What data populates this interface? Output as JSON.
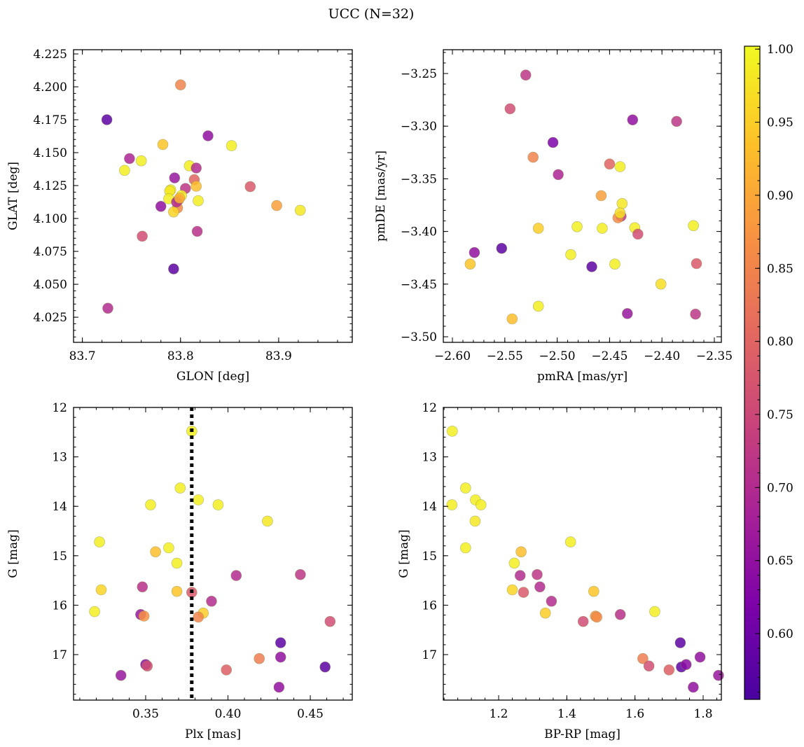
{
  "title": "UCC (N=32)",
  "colorbar": {
    "colormap": "plasma",
    "vmin": 0.555,
    "vmax": 1.002,
    "ticks": [
      0.6,
      0.65,
      0.7,
      0.75,
      0.8,
      0.85,
      0.9,
      0.95,
      1.0
    ],
    "tick_labels": [
      "0.60",
      "0.65",
      "0.70",
      "0.75",
      "0.80",
      "0.85",
      "0.90",
      "0.95",
      "1.00"
    ]
  },
  "chart_data": [
    {
      "type": "scatter",
      "id": "sky",
      "title": "",
      "xlabel": "GLON [deg]",
      "ylabel": "GLAT [deg]",
      "xlim": [
        83.691,
        83.975
      ],
      "ylim": [
        4.0059,
        4.2282
      ],
      "xticks": [
        83.7,
        83.8,
        83.9
      ],
      "xtick_labels": [
        "83.7",
        "83.8",
        "83.9"
      ],
      "yticks": [
        4.025,
        4.05,
        4.075,
        4.1,
        4.125,
        4.15,
        4.175,
        4.2,
        4.225
      ],
      "ytick_labels": [
        "4.025",
        "4.050",
        "4.075",
        "4.100",
        "4.125",
        "4.150",
        "4.175",
        "4.200",
        "4.225"
      ],
      "x": [
        83.8,
        83.725,
        83.828,
        83.782,
        83.852,
        83.748,
        83.76,
        83.743,
        83.809,
        83.816,
        83.794,
        83.814,
        83.805,
        83.816,
        83.871,
        83.79,
        83.789,
        83.801,
        83.788,
        83.818,
        83.78,
        83.798,
        83.797,
        83.793,
        83.898,
        83.922,
        83.817,
        83.761,
        83.793,
        83.726,
        83.796,
        83.799
      ],
      "y": [
        4.2015,
        4.175,
        4.1628,
        4.1562,
        4.1553,
        4.1455,
        4.1438,
        4.1365,
        4.14,
        4.1383,
        4.1308,
        4.1295,
        4.1228,
        4.1245,
        4.1242,
        4.1218,
        4.1208,
        4.1175,
        4.115,
        4.1135,
        4.1092,
        4.1142,
        4.108,
        4.105,
        4.1098,
        4.1062,
        4.0902,
        4.0865,
        4.0617,
        4.0318,
        4.1125,
        4.1155
      ],
      "c": [
        0.85,
        0.58,
        0.65,
        0.94,
        0.99,
        0.69,
        0.99,
        0.99,
        0.99,
        0.7,
        0.66,
        0.8,
        0.72,
        0.93,
        0.78,
        0.99,
        0.98,
        0.99,
        0.99,
        0.99,
        0.65,
        0.82,
        0.86,
        0.96,
        0.89,
        0.98,
        0.71,
        0.76,
        0.58,
        0.7,
        0.7,
        0.92
      ]
    },
    {
      "type": "scatter",
      "id": "pm",
      "title": "",
      "xlabel": "pmRA [mas/yr]",
      "ylabel": "pmDE [mas/yr]",
      "xlim": [
        -2.6087,
        -2.3433
      ],
      "ylim": [
        -3.5053,
        -3.2274
      ],
      "xticks": [
        -2.6,
        -2.55,
        -2.5,
        -2.45,
        -2.4,
        -2.35
      ],
      "xtick_labels": [
        "−2.60",
        "−2.55",
        "−2.50",
        "−2.45",
        "−2.40",
        "−2.35"
      ],
      "yticks": [
        -3.5,
        -3.45,
        -3.4,
        -3.35,
        -3.3,
        -3.25
      ],
      "ytick_labels": [
        "−3.50",
        "−3.45",
        "−3.40",
        "−3.35",
        "−3.30",
        "−3.25"
      ],
      "x": [
        -2.53,
        -2.545,
        -2.428,
        -2.386,
        -2.504,
        -2.523,
        -2.499,
        -2.45,
        -2.44,
        -2.458,
        -2.438,
        -2.439,
        -2.442,
        -2.44,
        -2.518,
        -2.481,
        -2.457,
        -2.426,
        -2.423,
        -2.37,
        -2.579,
        -2.553,
        -2.487,
        -2.467,
        -2.445,
        -2.583,
        -2.401,
        -2.518,
        -2.543,
        -2.433,
        -2.367,
        -2.368
      ],
      "y": [
        -3.2515,
        -3.2835,
        -3.294,
        -3.2955,
        -3.3155,
        -3.3295,
        -3.346,
        -3.336,
        -3.3385,
        -3.366,
        -3.3735,
        -3.3855,
        -3.387,
        -3.3825,
        -3.397,
        -3.3955,
        -3.397,
        -3.3965,
        -3.4025,
        -3.3945,
        -3.42,
        -3.416,
        -3.422,
        -3.4335,
        -3.431,
        -3.431,
        -3.45,
        -3.471,
        -3.483,
        -3.478,
        -3.4305,
        -3.4785
      ],
      "c": [
        0.72,
        0.76,
        0.65,
        0.72,
        0.62,
        0.85,
        0.69,
        0.8,
        0.99,
        0.89,
        0.98,
        0.72,
        0.86,
        0.97,
        0.95,
        0.99,
        0.99,
        0.99,
        0.76,
        0.99,
        0.65,
        0.58,
        0.99,
        0.58,
        0.99,
        0.94,
        0.97,
        0.99,
        0.93,
        0.66,
        0.78,
        0.72
      ]
    },
    {
      "type": "scatter",
      "id": "plx",
      "title": "",
      "xlabel": "Plx [mas]",
      "ylabel": "G [mag]",
      "xlim": [
        0.3062,
        0.4755
      ],
      "ylim": [
        17.92,
        12.0
      ],
      "xticks": [
        0.35,
        0.4,
        0.45
      ],
      "xtick_labels": [
        "0.35",
        "0.40",
        "0.45"
      ],
      "yticks": [
        12,
        13,
        14,
        15,
        16,
        17
      ],
      "ytick_labels": [
        "12",
        "13",
        "14",
        "15",
        "16",
        "17"
      ],
      "vline": {
        "x": 0.378,
        "style": "dotted",
        "color": "#000000"
      },
      "x": [
        0.378,
        0.371,
        0.382,
        0.353,
        0.394,
        0.424,
        0.322,
        0.364,
        0.356,
        0.369,
        0.405,
        0.444,
        0.348,
        0.323,
        0.369,
        0.378,
        0.39,
        0.319,
        0.347,
        0.349,
        0.385,
        0.382,
        0.462,
        0.432,
        0.432,
        0.419,
        0.35,
        0.351,
        0.399,
        0.335,
        0.459,
        0.431
      ],
      "y": [
        12.48,
        13.63,
        13.87,
        13.97,
        13.97,
        14.3,
        14.72,
        14.84,
        14.92,
        15.15,
        15.4,
        15.38,
        15.63,
        15.69,
        15.72,
        15.74,
        15.92,
        16.13,
        16.19,
        16.22,
        16.16,
        16.24,
        16.33,
        16.76,
        17.05,
        17.08,
        17.2,
        17.23,
        17.31,
        17.42,
        17.25,
        17.66
      ],
      "c": [
        0.99,
        0.99,
        0.99,
        0.99,
        0.99,
        0.98,
        0.99,
        0.99,
        0.93,
        0.99,
        0.7,
        0.72,
        0.71,
        0.96,
        0.94,
        0.78,
        0.7,
        0.99,
        0.66,
        0.87,
        0.95,
        0.85,
        0.76,
        0.58,
        0.65,
        0.84,
        0.64,
        0.76,
        0.79,
        0.66,
        0.58,
        0.65
      ]
    },
    {
      "type": "scatter",
      "id": "cmd",
      "title": "",
      "xlabel": "BP-RP [mag]",
      "ylabel": "G [mag]",
      "xlim": [
        1.0377,
        1.8534
      ],
      "ylim": [
        17.92,
        12.0
      ],
      "xticks": [
        1.2,
        1.4,
        1.6,
        1.8
      ],
      "xtick_labels": [
        "1.2",
        "1.4",
        "1.6",
        "1.8"
      ],
      "yticks": [
        12,
        13,
        14,
        15,
        16,
        17
      ],
      "ytick_labels": [
        "12",
        "13",
        "14",
        "15",
        "16",
        "17"
      ],
      "x": [
        1.064,
        1.103,
        1.132,
        1.063,
        1.148,
        1.131,
        1.103,
        1.411,
        1.266,
        1.246,
        1.263,
        1.313,
        1.321,
        1.24,
        1.273,
        1.479,
        1.355,
        1.658,
        1.337,
        1.448,
        1.557,
        1.484,
        1.488,
        1.733,
        1.791,
        1.623,
        1.641,
        1.736,
        1.75,
        1.7,
        1.845,
        1.771
      ],
      "y": [
        12.48,
        13.63,
        13.87,
        13.97,
        13.97,
        14.3,
        14.84,
        14.72,
        14.92,
        15.15,
        15.4,
        15.38,
        15.63,
        15.69,
        15.74,
        15.72,
        15.92,
        16.13,
        16.16,
        16.33,
        16.19,
        16.22,
        16.24,
        16.76,
        17.05,
        17.08,
        17.23,
        17.25,
        17.2,
        17.31,
        17.42,
        17.66
      ],
      "c": [
        0.99,
        0.99,
        0.99,
        0.99,
        0.99,
        0.98,
        0.99,
        0.99,
        0.93,
        0.99,
        0.7,
        0.72,
        0.7,
        0.96,
        0.78,
        0.94,
        0.7,
        0.99,
        0.95,
        0.76,
        0.71,
        0.87,
        0.86,
        0.58,
        0.65,
        0.84,
        0.76,
        0.58,
        0.64,
        0.79,
        0.66,
        0.65
      ]
    }
  ]
}
